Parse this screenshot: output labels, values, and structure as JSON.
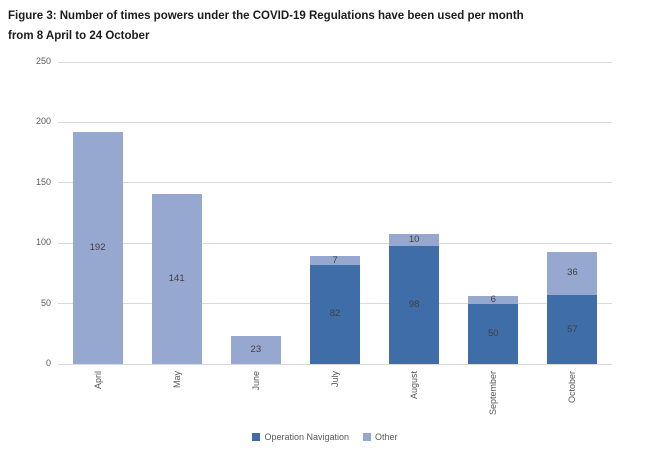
{
  "figure": {
    "title_line1": "Figure 3: Number of times powers under the COVID-19 Regulations have been used per month",
    "title_line2": "from 8 April to 24 October"
  },
  "chart_data": {
    "type": "bar",
    "stacked": true,
    "categories": [
      "April",
      "May",
      "June",
      "July",
      "August",
      "September",
      "October"
    ],
    "series": [
      {
        "name": "Operation Navigation",
        "color": "#3f6da8",
        "values": [
          0,
          0,
          0,
          82,
          98,
          50,
          57
        ]
      },
      {
        "name": "Other",
        "color": "#96a8cf",
        "values": [
          192,
          141,
          23,
          7,
          10,
          6,
          36
        ]
      }
    ],
    "ylim": [
      0,
      250
    ],
    "yticks": [
      0,
      50,
      100,
      150,
      200,
      250
    ],
    "grid": "horizontal",
    "gridline_color": "#d9d9d9",
    "axis_label_color": "#595959",
    "data_label_color": "#404040",
    "data_labels": true,
    "legend_position": "bottom",
    "x_label_rotation": 90
  }
}
